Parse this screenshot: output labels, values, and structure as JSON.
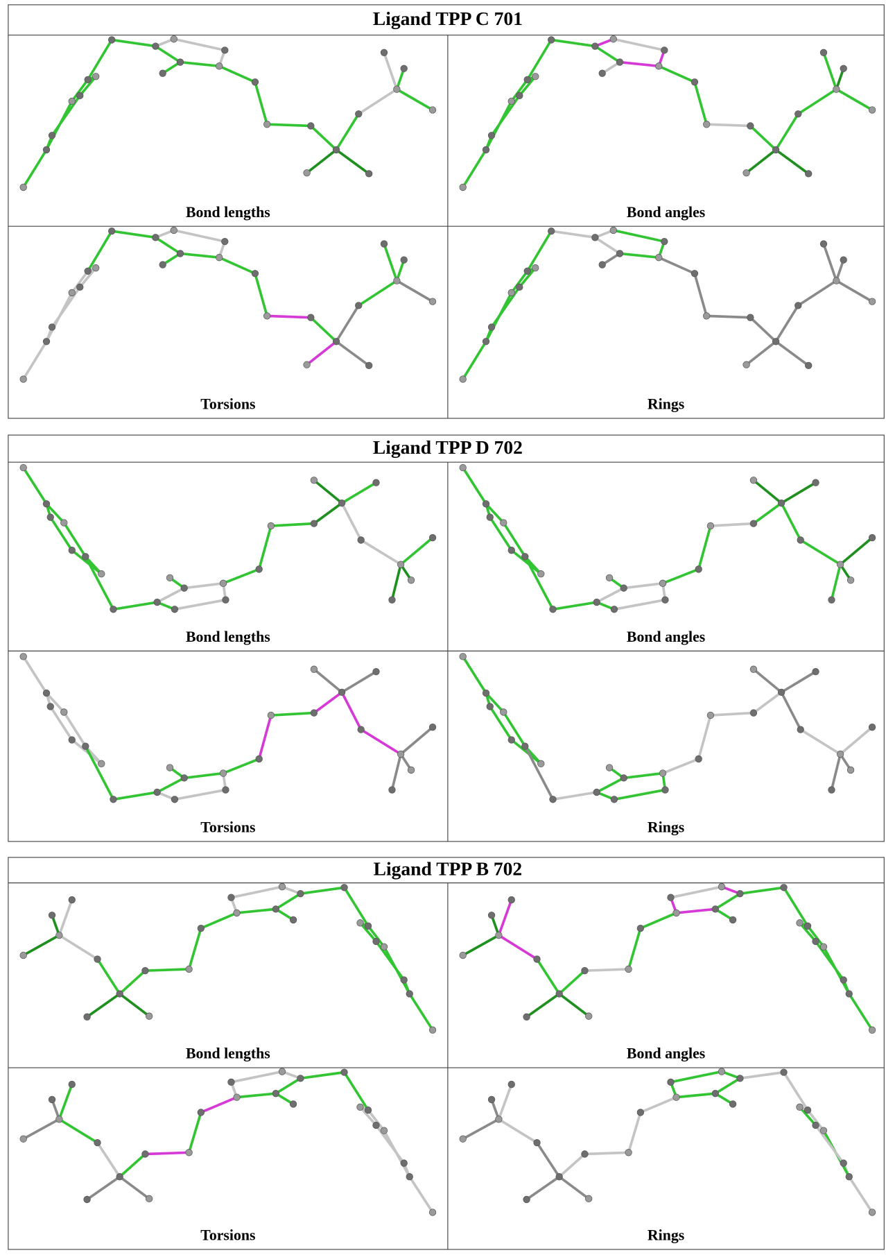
{
  "sections": [
    {
      "title": "Ligand TPP C 701",
      "panels": [
        "Bond lengths",
        "Bond angles",
        "Torsions",
        "Rings"
      ]
    },
    {
      "title": "Ligand TPP D 702",
      "panels": [
        "Bond lengths",
        "Bond angles",
        "Torsions",
        "Rings"
      ]
    },
    {
      "title": "Ligand TPP B 702",
      "panels": [
        "Bond lengths",
        "Bond angles",
        "Torsions",
        "Rings"
      ]
    }
  ]
}
